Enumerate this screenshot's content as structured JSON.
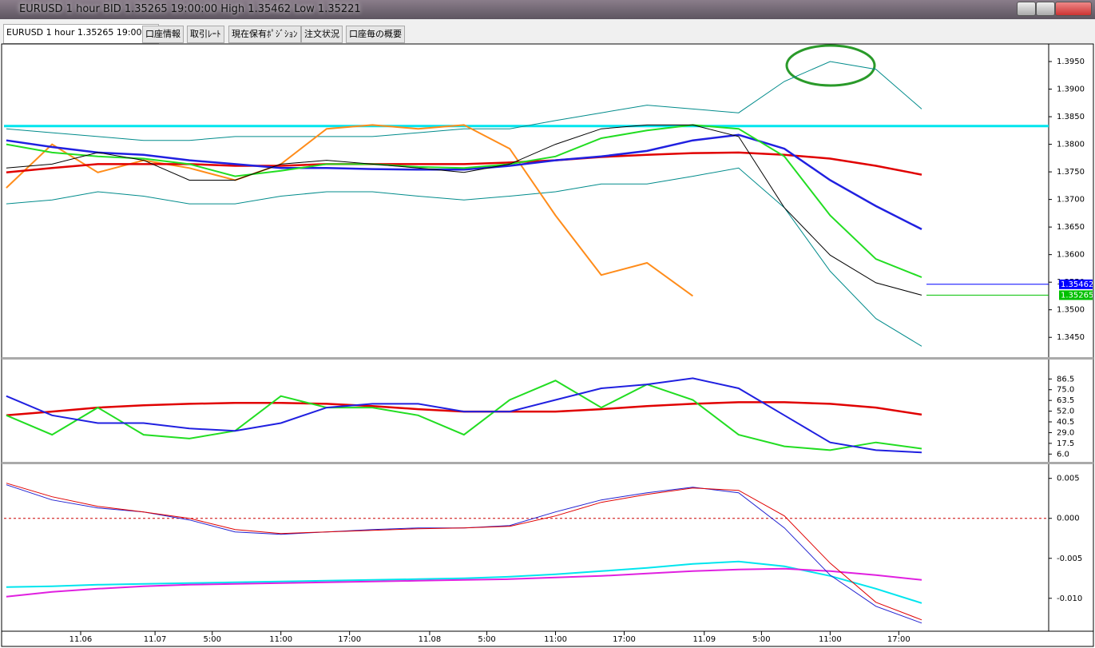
{
  "window": {
    "title": "EURUSD 1 hour BID 1.35265 19:00:00 High 1.35462 Low 1.35221"
  },
  "tabs": [
    "EURUSD 1 hour 1.35265 19:00:00",
    "口座情報",
    "取引ﾚｰﾄ",
    "現在保有ﾎﾟｼﾞｼｮﾝ",
    "注文状況",
    "口座毎の概要"
  ],
  "chart_data": [
    {
      "type": "line",
      "x": [
        0,
        4,
        8,
        12,
        16,
        20,
        24,
        28,
        32,
        36,
        40,
        44,
        48,
        52,
        56,
        60,
        64,
        68,
        72,
        76,
        80
      ],
      "xlim": [
        -0.2,
        91.1
      ],
      "ylim": [
        1.3417,
        1.3979
      ],
      "yticks": [
        {
          "value": 1.395,
          "label": "1.3950"
        },
        {
          "value": 1.39,
          "label": "1.3900"
        },
        {
          "value": 1.385,
          "label": "1.3850"
        },
        {
          "value": 1.38,
          "label": "1.3800"
        },
        {
          "value": 1.375,
          "label": "1.3750"
        },
        {
          "value": 1.37,
          "label": "1.3700"
        },
        {
          "value": 1.365,
          "label": "1.3650"
        },
        {
          "value": 1.36,
          "label": "1.3600"
        },
        {
          "value": 1.355,
          "label": "1.3550"
        },
        {
          "value": 1.35,
          "label": "1.3500"
        },
        {
          "value": 1.345,
          "label": "1.3450"
        }
      ],
      "hlines": [
        {
          "value": 1.3833,
          "color": "#00e5ee",
          "width": 3
        }
      ],
      "markers": [
        {
          "value": 1.35462,
          "label": "1.35462",
          "color": "#0000ff"
        },
        {
          "value": 1.35265,
          "label": "1.35265",
          "color": "#00c000"
        }
      ],
      "series": [
        {
          "color": "#008b8b",
          "width": 1,
          "values": [
            1.3828,
            1.3821,
            1.3814,
            1.3807,
            1.3807,
            1.3814,
            1.3814,
            1.3814,
            1.3814,
            1.3821,
            1.3828,
            1.3828,
            1.3843,
            1.3857,
            1.3871,
            1.3864,
            1.3857,
            1.3914,
            1.395,
            1.3936,
            1.3864
          ]
        },
        {
          "color": "#008b8b",
          "width": 1,
          "values": [
            1.3692,
            1.3699,
            1.3714,
            1.3706,
            1.3692,
            1.3692,
            1.3706,
            1.3714,
            1.3714,
            1.3706,
            1.3699,
            1.3706,
            1.3714,
            1.3728,
            1.3728,
            1.3742,
            1.3757,
            1.3685,
            1.357,
            1.3484,
            1.3434
          ]
        },
        {
          "color": "#ff8c1a",
          "width": 2,
          "values": [
            1.3721,
            1.38,
            1.3749,
            1.3771,
            1.3757,
            1.3735,
            1.3764,
            1.3828,
            1.3835,
            1.3828,
            1.3835,
            1.3792,
            1.3671,
            1.3563,
            1.3585,
            1.3525,
            null,
            null,
            null,
            null,
            null
          ]
        },
        {
          "color": "#e00000",
          "width": 2.5,
          "values": [
            1.3749,
            1.3757,
            1.3764,
            1.3764,
            1.3764,
            1.3761,
            1.3761,
            1.3764,
            1.3764,
            1.3764,
            1.3764,
            1.3767,
            1.3771,
            1.3777,
            1.3781,
            1.3784,
            1.3785,
            1.3781,
            1.3774,
            1.3761,
            1.3745
          ]
        },
        {
          "color": "#2020e0",
          "width": 2.5,
          "values": [
            1.3807,
            1.3795,
            1.3785,
            1.3781,
            1.3771,
            1.3764,
            1.3757,
            1.3757,
            1.3755,
            1.3754,
            1.3754,
            1.3761,
            1.3771,
            1.3778,
            1.3788,
            1.3807,
            1.3817,
            1.3792,
            1.3735,
            1.3688,
            1.3646
          ]
        },
        {
          "color": "#22dd22",
          "width": 2,
          "values": [
            1.38,
            1.3785,
            1.3778,
            1.3774,
            1.3764,
            1.3742,
            1.3752,
            1.3764,
            1.3764,
            1.3759,
            1.3757,
            1.3764,
            1.3778,
            1.3811,
            1.3825,
            1.3835,
            1.3828,
            1.3778,
            1.3671,
            1.3592,
            1.3559
          ]
        },
        {
          "color": "#000000",
          "width": 1,
          "values": [
            1.3757,
            1.3764,
            1.3785,
            1.3771,
            1.3735,
            1.3735,
            1.3764,
            1.3771,
            1.3764,
            1.3757,
            1.3749,
            1.3764,
            1.38,
            1.3828,
            1.3835,
            1.3835,
            1.3814,
            1.3685,
            1.3599,
            1.3549,
            1.35265
          ]
        }
      ]
    },
    {
      "type": "line",
      "x": [
        0,
        4,
        8,
        12,
        16,
        20,
        24,
        28,
        32,
        36,
        40,
        44,
        48,
        52,
        56,
        60,
        64,
        68,
        72,
        76,
        80
      ],
      "xlim": [
        -0.2,
        91.1
      ],
      "ylim": [
        -0.6,
        105.6
      ],
      "yticks": [
        86.5,
        {
          "value": 75,
          "label": "75.0"
        },
        63.5,
        {
          "value": 52,
          "label": "52.0"
        },
        40.5,
        {
          "value": 29,
          "label": "29.0"
        },
        17.5,
        {
          "value": 6,
          "label": "6.0"
        }
      ],
      "series": [
        {
          "color": "#e00000",
          "width": 2.5,
          "values": [
            47.5,
            51.6,
            55.8,
            58.3,
            59.9,
            60.8,
            60.8,
            59.9,
            57.5,
            54.1,
            51.6,
            51.6,
            51.6,
            54.1,
            57.5,
            59.9,
            61.6,
            61.6,
            59.9,
            55.8,
            48.3
          ]
        },
        {
          "color": "#22dd22",
          "width": 2,
          "values": [
            47.5,
            26.7,
            55.8,
            26.7,
            22.6,
            30.9,
            68.2,
            55.8,
            55.8,
            47.5,
            26.7,
            64.1,
            84.8,
            55.8,
            80.7,
            64.1,
            26.7,
            14.3,
            10.2,
            18.5,
            11.8
          ]
        },
        {
          "color": "#2020e0",
          "width": 2,
          "values": [
            68.2,
            47.5,
            39.2,
            39.2,
            33.4,
            30.9,
            39.2,
            55.8,
            59.9,
            59.9,
            51.6,
            51.6,
            64.1,
            76.5,
            80.7,
            87.3,
            76.5,
            47.5,
            18.5,
            10.2,
            7.7
          ]
        }
      ]
    },
    {
      "type": "line",
      "x": [
        0,
        4,
        8,
        12,
        16,
        20,
        24,
        28,
        32,
        36,
        40,
        44,
        48,
        52,
        56,
        60,
        64,
        68,
        72,
        76,
        80
      ],
      "xlim": [
        -0.2,
        91.1
      ],
      "ylim": [
        -0.01392,
        0.00647
      ],
      "yticks": [
        0.005,
        {
          "value": 0,
          "label": "0.000"
        },
        -0.005,
        {
          "value": -0.01,
          "label": "-0.010"
        }
      ],
      "xticks": [
        {
          "value": 6.5,
          "label": "11.06"
        },
        {
          "value": 13,
          "label": "11.07"
        },
        {
          "value": 18,
          "label": "5:00"
        },
        {
          "value": 24,
          "label": "11:00"
        },
        {
          "value": 30,
          "label": "17:00"
        },
        {
          "value": 37,
          "label": "11.08"
        },
        {
          "value": 42,
          "label": "5:00"
        },
        {
          "value": 48,
          "label": "11:00"
        },
        {
          "value": 54,
          "label": "17:00"
        },
        {
          "value": 61,
          "label": "11.09"
        },
        {
          "value": 66,
          "label": "5:00"
        },
        {
          "value": 72,
          "label": "11:00"
        },
        {
          "value": 78,
          "label": "17:00"
        }
      ],
      "hlines": [
        {
          "value": 0,
          "color": "#cc0000",
          "width": 1,
          "dash": true
        }
      ],
      "series": [
        {
          "color": "#00e5ee",
          "width": 2,
          "values": [
            -0.0086,
            -0.0085,
            -0.0083,
            -0.0082,
            -0.0081,
            -0.008,
            -0.0079,
            -0.0078,
            -0.0077,
            -0.0076,
            -0.0075,
            -0.0073,
            -0.007,
            -0.0066,
            -0.0062,
            -0.0057,
            -0.0054,
            -0.006,
            -0.0072,
            -0.0088,
            -0.0106
          ]
        },
        {
          "color": "#e020e0",
          "width": 2,
          "values": [
            -0.0098,
            -0.0092,
            -0.0088,
            -0.0085,
            -0.0083,
            -0.0082,
            -0.0081,
            -0.008,
            -0.0079,
            -0.0078,
            -0.0077,
            -0.0076,
            -0.0074,
            -0.0072,
            -0.0069,
            -0.0066,
            -0.0064,
            -0.0063,
            -0.0066,
            -0.0071,
            -0.0077
          ]
        },
        {
          "color": "#2020d0",
          "width": 1,
          "values": [
            0.0042,
            0.0023,
            0.0013,
            0.0008,
            -0.0002,
            -0.0017,
            -0.002,
            -0.0017,
            -0.0014,
            -0.0012,
            -0.0012,
            -0.0009,
            0.0008,
            0.0023,
            0.0032,
            0.0039,
            0.0032,
            -0.0012,
            -0.0071,
            -0.011,
            -0.0131
          ]
        },
        {
          "color": "#e00000",
          "width": 1,
          "values": [
            0.0044,
            0.0027,
            0.0015,
            0.0008,
            0,
            -0.0014,
            -0.0019,
            -0.0017,
            -0.0015,
            -0.0013,
            -0.0012,
            -0.001,
            0.0003,
            0.002,
            0.003,
            0.0038,
            0.0035,
            0.0003,
            -0.0056,
            -0.0105,
            -0.0127
          ]
        }
      ]
    }
  ]
}
